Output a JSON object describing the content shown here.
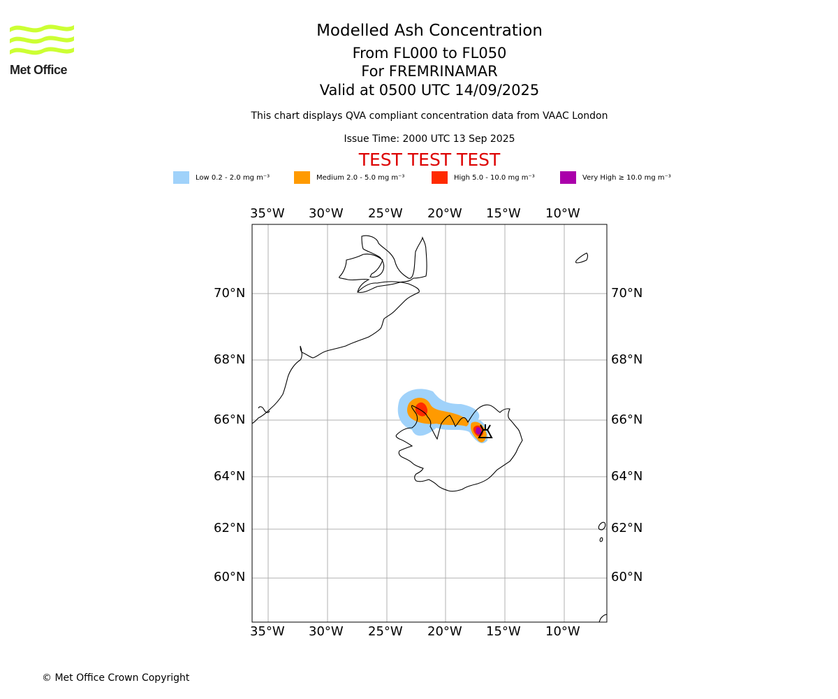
{
  "logo": {
    "text": "Met Office",
    "color": "#ccff33"
  },
  "title": {
    "main": "Modelled Ash Concentration",
    "levels": "From FL000 to FL050",
    "volcano": "For FREMRINAMAR",
    "valid": "Valid at 0500 UTC 14/09/2025",
    "source_note": "This chart displays QVA compliant concentration data from VAAC London",
    "issue_time": "Issue Time: 2000 UTC 13 Sep 2025",
    "test_banner": "TEST TEST TEST",
    "test_color": "#dd0000"
  },
  "legend": [
    {
      "label": "Low 0.2 - 2.0 mg m⁻³",
      "color": "#a0d2fa"
    },
    {
      "label": "Medium 2.0 - 5.0 mg m⁻³",
      "color": "#ff9a00"
    },
    {
      "label": "High 5.0 - 10.0 mg m⁻³",
      "color": "#ff2a00"
    },
    {
      "label": "Very High ≥ 10.0 mg m⁻³",
      "color": "#aa00aa"
    }
  ],
  "map": {
    "lon_labels": [
      "35°W",
      "30°W",
      "25°W",
      "20°W",
      "15°W",
      "10°W"
    ],
    "lat_labels": [
      "70°N",
      "68°N",
      "66°N",
      "64°N",
      "62°N",
      "60°N"
    ],
    "volcano_symbol": "volcano-icon",
    "grid_color": "#b0b0b0"
  },
  "footer": {
    "copyright": "© Met Office Crown Copyright"
  }
}
